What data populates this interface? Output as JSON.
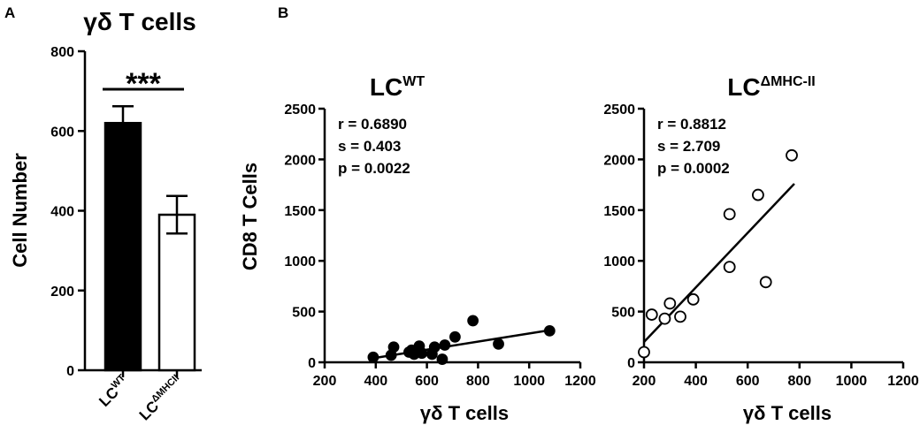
{
  "figure": {
    "panel_a_letter": "A",
    "panel_b_letter": "B"
  },
  "colors": {
    "wt_bar": "#000000",
    "ko_bar": "#ffffff",
    "ink": "#000000"
  },
  "chart_data": [
    {
      "type": "bar",
      "title": "γδ T cells",
      "ylabel": "Cell Number",
      "xlabel": "",
      "ylim": [
        0,
        800
      ],
      "yticks": [
        0,
        200,
        400,
        600,
        800
      ],
      "categories": [
        {
          "base": "LC",
          "sup": "WT",
          "label": "LCWT"
        },
        {
          "base": "LC",
          "sup": "ΔMHCII",
          "label": "LCΔMHCII"
        }
      ],
      "values": [
        620,
        390
      ],
      "errors": [
        42,
        47
      ],
      "bar_colors": [
        "#000000",
        "#ffffff"
      ],
      "significance": "***"
    },
    {
      "type": "scatter",
      "title_base": "LC",
      "title_sup": "WT",
      "xlabel": "γδ T cells",
      "ylabel": "CD8 T Cells",
      "xlim": [
        200,
        1200
      ],
      "ylim": [
        0,
        2500
      ],
      "xticks": [
        200,
        400,
        600,
        800,
        1000,
        1200
      ],
      "yticks": [
        0,
        500,
        1000,
        1500,
        2000,
        2500
      ],
      "marker": "filled",
      "stats": [
        "r = 0.6890",
        "s = 0.403",
        "p = 0.0022"
      ],
      "points": [
        [
          390,
          50
        ],
        [
          460,
          70
        ],
        [
          470,
          150
        ],
        [
          530,
          100
        ],
        [
          540,
          120
        ],
        [
          550,
          80
        ],
        [
          560,
          110
        ],
        [
          570,
          160
        ],
        [
          580,
          90
        ],
        [
          620,
          80
        ],
        [
          630,
          150
        ],
        [
          660,
          30
        ],
        [
          670,
          170
        ],
        [
          710,
          250
        ],
        [
          780,
          410
        ],
        [
          880,
          180
        ],
        [
          1080,
          310
        ]
      ],
      "fit": [
        [
          390,
          40
        ],
        [
          1090,
          320
        ]
      ]
    },
    {
      "type": "scatter",
      "title_base": "LC",
      "title_sup": "ΔMHC-II",
      "xlabel": "γδ T cells",
      "ylabel": "",
      "xlim": [
        200,
        1200
      ],
      "ylim": [
        0,
        2500
      ],
      "xticks": [
        200,
        400,
        600,
        800,
        1000,
        1200
      ],
      "yticks": [
        0,
        500,
        1000,
        1500,
        2000,
        2500
      ],
      "marker": "open",
      "stats": [
        "r = 0.8812",
        "s = 2.709",
        "p = 0.0002"
      ],
      "points": [
        [
          200,
          100
        ],
        [
          230,
          470
        ],
        [
          280,
          430
        ],
        [
          300,
          580
        ],
        [
          340,
          450
        ],
        [
          390,
          620
        ],
        [
          530,
          940
        ],
        [
          530,
          1460
        ],
        [
          640,
          1650
        ],
        [
          670,
          790
        ],
        [
          770,
          2040
        ]
      ],
      "fit": [
        [
          200,
          200
        ],
        [
          780,
          1760
        ]
      ]
    }
  ]
}
